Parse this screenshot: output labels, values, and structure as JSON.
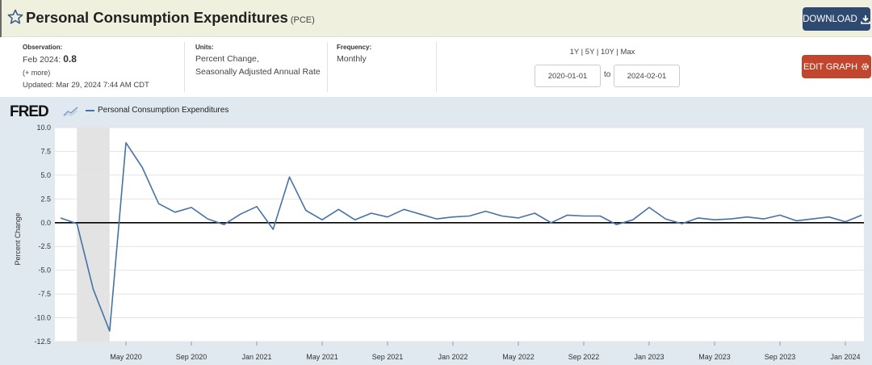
{
  "header": {
    "title": "Personal Consumption Expenditures",
    "series_code": "(PCE)",
    "download_label": "DOWNLOAD",
    "edit_graph_label": "EDIT GRAPH"
  },
  "meta": {
    "observation_label": "Observation:",
    "observation_date": "Feb 2024:",
    "observation_value": "0.8",
    "more_label": "(+ more)",
    "updated_label": "Updated:",
    "updated_value": "Mar 29, 2024 7:44 AM CDT",
    "units_label": "Units:",
    "units_line1": "Percent Change,",
    "units_line2": "Seasonally Adjusted Annual Rate",
    "frequency_label": "Frequency:",
    "frequency_value": "Monthly",
    "range_1y": "1Y",
    "range_5y": "5Y",
    "range_10y": "10Y",
    "range_max": "Max",
    "range_sep": "|",
    "date_from": "2020-01-01",
    "to_label": "to",
    "date_to": "2024-02-01"
  },
  "brand": {
    "logo_text": "FRED"
  },
  "colors": {
    "series": "#4572a7",
    "recession": "#e3e3e3",
    "panel": "#e1e9f0",
    "download": "#2f4a70",
    "edit": "#c2452d"
  },
  "icons": {
    "favorite": "star-icon",
    "download": "download-icon",
    "edit": "gear-icon",
    "logo": "sparkline-icon"
  },
  "chart_data": {
    "type": "line",
    "title": "",
    "xlabel": "",
    "ylabel": "Percent Change",
    "ylim": [
      -12.5,
      10.0
    ],
    "yticks": [
      10.0,
      7.5,
      5.0,
      2.5,
      0.0,
      -2.5,
      -5.0,
      -7.5,
      -10.0,
      -12.5
    ],
    "ytick_labels": [
      "10.0",
      "7.5",
      "5.0",
      "2.5",
      "0.0",
      "-2.5",
      "-5.0",
      "-7.5",
      "-10.0",
      "-12.5"
    ],
    "xticks": [
      {
        "date": "2020-05",
        "label": "May 2020"
      },
      {
        "date": "2020-09",
        "label": "Sep 2020"
      },
      {
        "date": "2021-01",
        "label": "Jan 2021"
      },
      {
        "date": "2021-05",
        "label": "May 2021"
      },
      {
        "date": "2021-09",
        "label": "Sep 2021"
      },
      {
        "date": "2022-01",
        "label": "Jan 2022"
      },
      {
        "date": "2022-05",
        "label": "May 2022"
      },
      {
        "date": "2022-09",
        "label": "Sep 2022"
      },
      {
        "date": "2023-01",
        "label": "Jan 2023"
      },
      {
        "date": "2023-05",
        "label": "May 2023"
      },
      {
        "date": "2023-09",
        "label": "Sep 2023"
      },
      {
        "date": "2024-01",
        "label": "Jan 2024"
      }
    ],
    "grid": true,
    "zero_line": true,
    "legend": "top-left",
    "recession_band": {
      "start": "2020-02",
      "end": "2020-04"
    },
    "series": [
      {
        "name": "Personal Consumption Expenditures",
        "x": [
          "2020-01",
          "2020-02",
          "2020-03",
          "2020-04",
          "2020-05",
          "2020-06",
          "2020-07",
          "2020-08",
          "2020-09",
          "2020-10",
          "2020-11",
          "2020-12",
          "2021-01",
          "2021-02",
          "2021-03",
          "2021-04",
          "2021-05",
          "2021-06",
          "2021-07",
          "2021-08",
          "2021-09",
          "2021-10",
          "2021-11",
          "2021-12",
          "2022-01",
          "2022-02",
          "2022-03",
          "2022-04",
          "2022-05",
          "2022-06",
          "2022-07",
          "2022-08",
          "2022-09",
          "2022-10",
          "2022-11",
          "2022-12",
          "2023-01",
          "2023-02",
          "2023-03",
          "2023-04",
          "2023-05",
          "2023-06",
          "2023-07",
          "2023-08",
          "2023-09",
          "2023-10",
          "2023-11",
          "2023-12",
          "2024-01",
          "2024-02"
        ],
        "values": [
          0.5,
          -0.1,
          -7.0,
          -11.4,
          8.4,
          5.8,
          2.0,
          1.1,
          1.6,
          0.4,
          -0.2,
          0.9,
          1.7,
          -0.7,
          4.8,
          1.3,
          0.3,
          1.4,
          0.3,
          1.0,
          0.6,
          1.4,
          0.9,
          0.4,
          0.6,
          0.7,
          1.2,
          0.7,
          0.5,
          1.0,
          0.0,
          0.8,
          0.7,
          0.7,
          -0.2,
          0.3,
          1.6,
          0.4,
          -0.1,
          0.5,
          0.3,
          0.4,
          0.6,
          0.4,
          0.8,
          0.2,
          0.4,
          0.6,
          0.1,
          0.8
        ]
      }
    ]
  }
}
